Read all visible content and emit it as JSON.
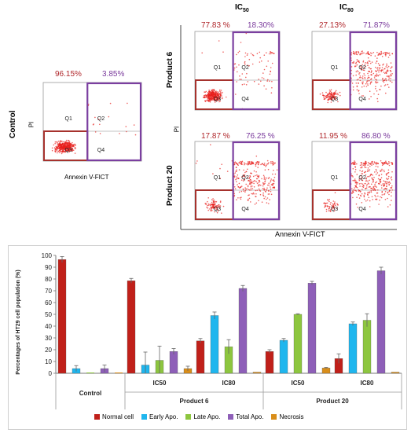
{
  "flow": {
    "col_headers": [
      {
        "base": "IC",
        "sub": "50"
      },
      {
        "base": "IC",
        "sub": "80"
      }
    ],
    "row_labels": [
      "Product 6",
      "Product 20",
      "Control"
    ],
    "quadrant_labels": [
      "Q1",
      "Q2",
      "Q3",
      "Q4"
    ],
    "y_axis_label": "PI",
    "x_axis_label_small": "Annexin V-FICT",
    "x_axis_label_big": "Annexin V-FICT",
    "panels": [
      {
        "id": "control",
        "left_pct": "96.15%",
        "right_pct": "3.85%"
      },
      {
        "id": "p6-ic50",
        "left_pct": "77.83 %",
        "right_pct": "18.30%"
      },
      {
        "id": "p6-ic80",
        "left_pct": "27.13%",
        "right_pct": "71.87%"
      },
      {
        "id": "p20-ic50",
        "left_pct": "17.87 %",
        "right_pct": "76.25 %"
      },
      {
        "id": "p20-ic80",
        "left_pct": "11.95 %",
        "right_pct": "86.80 %"
      }
    ],
    "colors": {
      "gate_red": "#a6322d",
      "gate_purple": "#7b3fa0",
      "dots": "#e8201c"
    }
  },
  "chart_data": {
    "type": "bar",
    "ylabel": "Percentages of  HT29 cell population (%)",
    "ylim": [
      0,
      100
    ],
    "yticks": [
      0,
      10,
      20,
      30,
      40,
      50,
      60,
      70,
      80,
      90,
      100
    ],
    "categories": [
      "Control",
      "IC50",
      "IC80",
      "IC50",
      "IC80"
    ],
    "groups": [
      "Control",
      "Product 6",
      "Product 20"
    ],
    "group_category_index": [
      [
        0
      ],
      [
        1,
        2
      ],
      [
        3,
        4
      ]
    ],
    "series": [
      {
        "name": "Normal cell",
        "color": "#c0201a",
        "values": [
          96.5,
          78.5,
          27.5,
          18.5,
          12.5
        ],
        "errors": [
          2.5,
          2,
          2,
          1.5,
          4
        ]
      },
      {
        "name": "Early Apo.",
        "color": "#1fb6ee",
        "values": [
          4,
          7,
          49,
          28,
          42
        ],
        "errors": [
          2.5,
          11,
          3,
          1.5,
          1.5
        ]
      },
      {
        "name": "Late Apo.",
        "color": "#8dc63f",
        "values": [
          0,
          11,
          22.5,
          50,
          45
        ],
        "errors": [
          0,
          12,
          6,
          0.5,
          5.5
        ]
      },
      {
        "name": "Total Apo.",
        "color": "#8e5fb8",
        "values": [
          4,
          18.5,
          72,
          76.5,
          87
        ],
        "errors": [
          3,
          2.5,
          2.5,
          1.5,
          3
        ]
      },
      {
        "name": "Necrosis",
        "color": "#d98e1a",
        "values": [
          0,
          4,
          1,
          4.5,
          1
        ],
        "errors": [
          0,
          2,
          0,
          0.5,
          0
        ]
      }
    ],
    "grid": false,
    "legend_position": "bottom"
  }
}
